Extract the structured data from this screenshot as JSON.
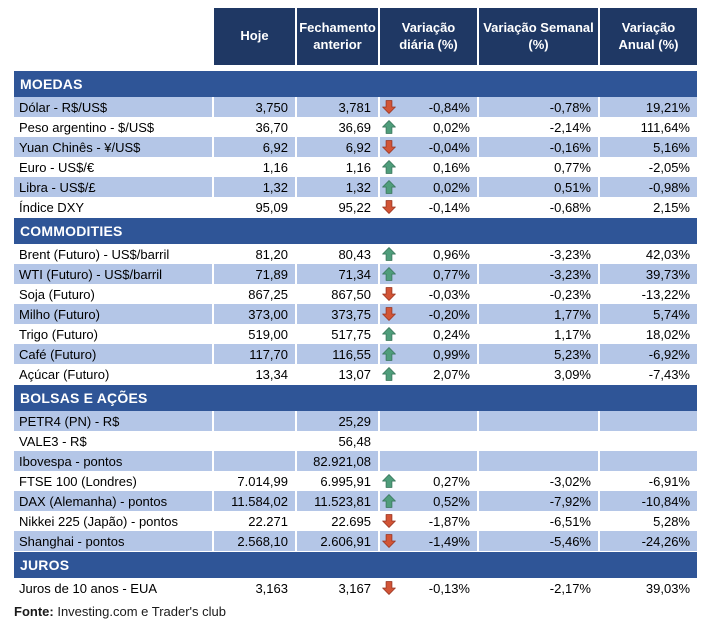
{
  "table": {
    "columns": [
      "Hoje",
      "Fechamento anterior",
      "Variação diária (%)",
      "Variação Semanal (%)",
      "Variação Anual (%)"
    ],
    "sections": [
      {
        "title": "MOEDAS",
        "zebra_offset": 0,
        "rows": [
          {
            "label": "Dólar - R$/US$",
            "today": "3,750",
            "prev": "3,781",
            "arrow": "down",
            "daily": "-0,84%",
            "weekly": "-0,78%",
            "annual": "19,21%"
          },
          {
            "label": "Peso argentino - $/US$",
            "today": "36,70",
            "prev": "36,69",
            "arrow": "up",
            "daily": "0,02%",
            "weekly": "-2,14%",
            "annual": "111,64%"
          },
          {
            "label": "Yuan Chinês - ¥/US$",
            "today": "6,92",
            "prev": "6,92",
            "arrow": "down",
            "daily": "-0,04%",
            "weekly": "-0,16%",
            "annual": "5,16%"
          },
          {
            "label": "Euro - US$/€",
            "today": "1,16",
            "prev": "1,16",
            "arrow": "up",
            "daily": "0,16%",
            "weekly": "0,77%",
            "annual": "-2,05%"
          },
          {
            "label": "Libra - US$/£",
            "today": "1,32",
            "prev": "1,32",
            "arrow": "up",
            "daily": "0,02%",
            "weekly": "0,51%",
            "annual": "-0,98%"
          },
          {
            "label": "Índice DXY",
            "today": "95,09",
            "prev": "95,22",
            "arrow": "down",
            "daily": "-0,14%",
            "weekly": "-0,68%",
            "annual": "2,15%"
          }
        ]
      },
      {
        "title": "COMMODITIES",
        "zebra_offset": 1,
        "rows": [
          {
            "label": "Brent (Futuro) - US$/barril",
            "today": "81,20",
            "prev": "80,43",
            "arrow": "up",
            "daily": "0,96%",
            "weekly": "-3,23%",
            "annual": "42,03%"
          },
          {
            "label": "WTI (Futuro) - US$/barril",
            "today": "71,89",
            "prev": "71,34",
            "arrow": "up",
            "daily": "0,77%",
            "weekly": "-3,23%",
            "annual": "39,73%"
          },
          {
            "label": "Soja (Futuro)",
            "today": "867,25",
            "prev": "867,50",
            "arrow": "down",
            "daily": "-0,03%",
            "weekly": "-0,23%",
            "annual": "-13,22%"
          },
          {
            "label": "Milho (Futuro)",
            "today": "373,00",
            "prev": "373,75",
            "arrow": "down",
            "daily": "-0,20%",
            "weekly": "1,77%",
            "annual": "5,74%"
          },
          {
            "label": "Trigo (Futuro)",
            "today": "519,00",
            "prev": "517,75",
            "arrow": "up",
            "daily": "0,24%",
            "weekly": "1,17%",
            "annual": "18,02%"
          },
          {
            "label": "Café (Futuro)",
            "today": "117,70",
            "prev": "116,55",
            "arrow": "up",
            "daily": "0,99%",
            "weekly": "5,23%",
            "annual": "-6,92%"
          },
          {
            "label": "Açúcar (Futuro)",
            "today": "13,34",
            "prev": "13,07",
            "arrow": "up",
            "daily": "2,07%",
            "weekly": "3,09%",
            "annual": "-7,43%"
          }
        ]
      },
      {
        "title": "BOLSAS E AÇÕES",
        "zebra_offset": 0,
        "rows": [
          {
            "label": "PETR4 (PN) - R$",
            "today": "",
            "prev": "25,29",
            "arrow": null,
            "daily": "",
            "weekly": "",
            "annual": ""
          },
          {
            "label": "VALE3 - R$",
            "today": "",
            "prev": "56,48",
            "arrow": null,
            "daily": "",
            "weekly": "",
            "annual": ""
          },
          {
            "label": "Ibovespa - pontos",
            "today": "",
            "prev": "82.921,08",
            "arrow": null,
            "daily": "",
            "weekly": "",
            "annual": ""
          },
          {
            "label": "FTSE 100 (Londres)",
            "today": "7.014,99",
            "prev": "6.995,91",
            "arrow": "up",
            "daily": "0,27%",
            "weekly": "-3,02%",
            "annual": "-6,91%"
          },
          {
            "label": "DAX (Alemanha) - pontos",
            "today": "11.584,02",
            "prev": "11.523,81",
            "arrow": "up",
            "daily": "0,52%",
            "weekly": "-7,92%",
            "annual": "-10,84%"
          },
          {
            "label": "Nikkei 225 (Japão) - pontos",
            "today": "22.271",
            "prev": "22.695",
            "arrow": "down",
            "daily": "-1,87%",
            "weekly": "-6,51%",
            "annual": "5,28%"
          },
          {
            "label": "Shanghai - pontos",
            "today": "2.568,10",
            "prev": "2.606,91",
            "arrow": "down",
            "daily": "-1,49%",
            "weekly": "-5,46%",
            "annual": "-24,26%"
          }
        ]
      },
      {
        "title": "JUROS",
        "zebra_offset": 1,
        "rows": [
          {
            "label": "Juros de 10 anos - EUA",
            "today": "3,163",
            "prev": "3,167",
            "arrow": "down",
            "daily": "-0,13%",
            "weekly": "-2,17%",
            "annual": "39,03%"
          }
        ]
      }
    ]
  },
  "footer": {
    "label": "Fonte:",
    "text": " Investing.com e Trader's club"
  },
  "icons": {
    "up": "up-arrow-icon",
    "down": "down-arrow-icon"
  },
  "colors": {
    "header_bg": "#1F3864",
    "section_bg": "#2F5597",
    "row_shade": "#B4C6E7",
    "header_text": "#FFFFFF",
    "body_text": "#000000",
    "up_arrow": "#4F9D7B",
    "up_arrow_border": "#3E7A61",
    "down_arrow": "#D25436",
    "down_arrow_border": "#9E3B28"
  }
}
